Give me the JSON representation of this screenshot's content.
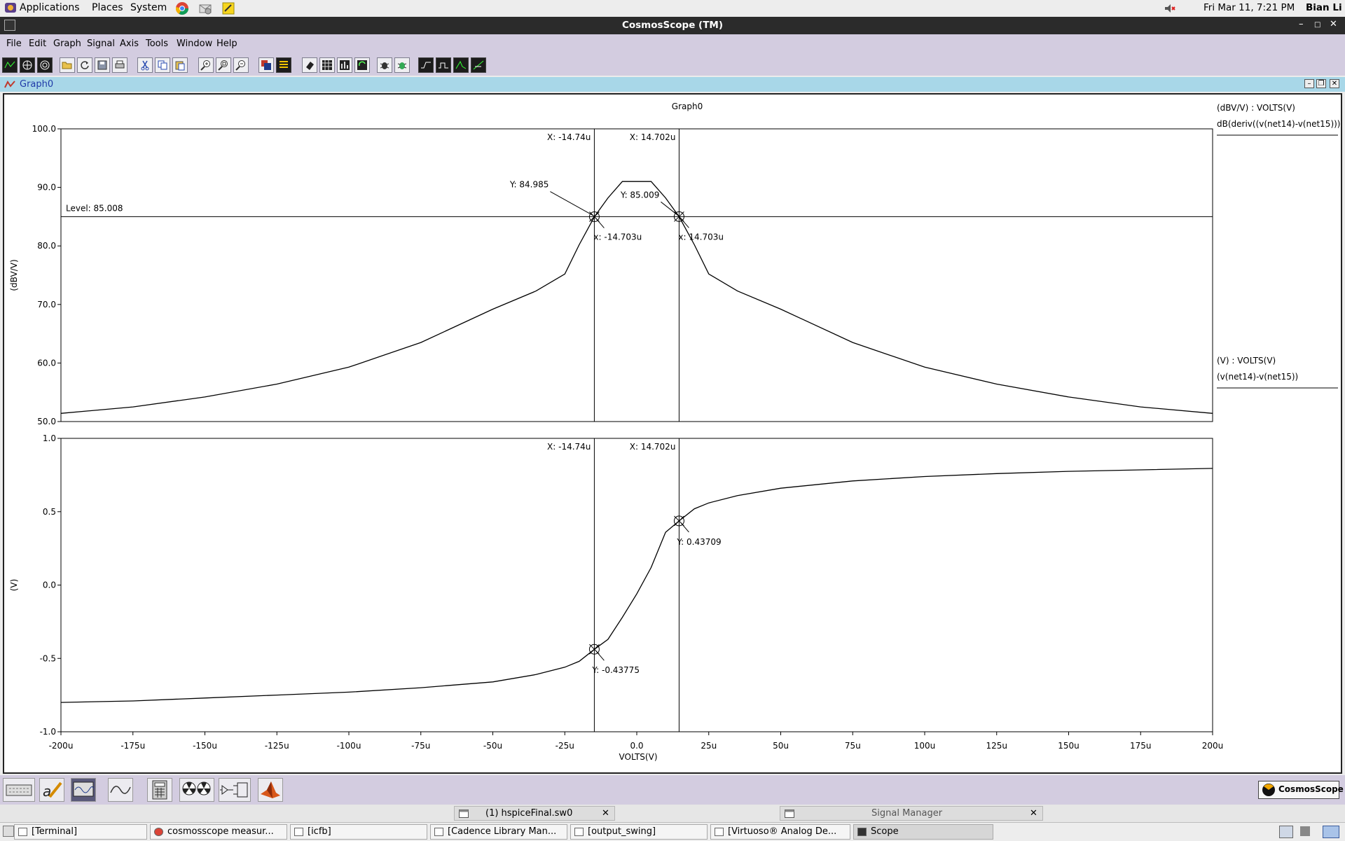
{
  "panel": {
    "menus": [
      "Applications",
      "Places",
      "System"
    ],
    "datetime": "Fri Mar 11,  7:21 PM",
    "user": "Bian Li"
  },
  "window": {
    "title": "CosmosScope (TM)"
  },
  "menubar": [
    "File",
    "Edit",
    "Graph",
    "Signal",
    "Axis",
    "Tools",
    "Window",
    "Help"
  ],
  "subwindow": {
    "title": "Graph0"
  },
  "graph_title": "Graph0",
  "bottom_logo": "CosmosScope",
  "doc_tabs": [
    {
      "label": "(1) hspiceFinal.sw0"
    },
    {
      "label": "Signal Manager"
    }
  ],
  "taskbar": [
    "[Terminal]",
    "cosmosscope measur...",
    "[icfb]",
    "[Cadence Library Man...",
    "[output_swing]",
    "[Virtuoso® Analog De...",
    "Scope"
  ],
  "colors": {
    "menubar": "#d3cce0",
    "subwindow_bar": "#a8d7e8",
    "plot_bg": "#ffffff",
    "trace": "#000000"
  },
  "chart_data": [
    {
      "type": "line",
      "title": "Graph0",
      "legend_header": "(dBV/V) : VOLTS(V)",
      "ylabel": "(dBV/V)",
      "ylim": [
        50,
        100
      ],
      "yticks": [
        "100.0",
        "90.0",
        "80.0",
        "70.0",
        "60.0",
        "50.0"
      ],
      "xlim": [
        -200,
        200
      ],
      "level_label": "Level: 85.008",
      "level": 85.008,
      "series": [
        {
          "name": "dB(deriv((v(net14)-v(net15))))",
          "x": [
            -200,
            -175,
            -150,
            -125,
            -100,
            -75,
            -50,
            -35,
            -25,
            -20,
            -14.7,
            -10,
            -5,
            0,
            5,
            10,
            14.7,
            20,
            25,
            35,
            50,
            75,
            100,
            125,
            150,
            175,
            200
          ],
          "y": [
            51.4,
            52.5,
            54.2,
            56.4,
            59.3,
            63.5,
            69.2,
            72.3,
            75.2,
            80.2,
            85.0,
            88.2,
            91.0,
            91.0,
            91.0,
            88.2,
            85.0,
            80.2,
            75.2,
            72.3,
            69.2,
            63.5,
            59.3,
            56.4,
            54.2,
            52.5,
            51.4
          ]
        }
      ],
      "cursors": [
        {
          "x_label": "X: -14.74u",
          "y_label": "Y: 84.985",
          "x_readout": "x: -14.703u",
          "x": -14.74,
          "y": 84.985
        },
        {
          "x_label": "X: 14.702u",
          "y_label": "Y: 85.009",
          "x_readout": "x: 14.703u",
          "x": 14.702,
          "y": 85.009
        }
      ]
    },
    {
      "type": "line",
      "legend_header": "(V) : VOLTS(V)",
      "ylabel": "(V)",
      "ylim": [
        -1,
        1
      ],
      "yticks": [
        "1.0",
        "0.5",
        "0.0",
        "-0.5",
        "-1.0"
      ],
      "xlim": [
        -200,
        200
      ],
      "xlabel": "VOLTS(V)",
      "xticks": [
        "-200u",
        "-175u",
        "-150u",
        "-125u",
        "-100u",
        "-75u",
        "-50u",
        "-25u",
        "0.0",
        "25u",
        "50u",
        "75u",
        "100u",
        "125u",
        "150u",
        "175u",
        "200u"
      ],
      "series": [
        {
          "name": "(v(net14)-v(net15))",
          "x": [
            -200,
            -175,
            -150,
            -125,
            -100,
            -75,
            -50,
            -35,
            -25,
            -20,
            -14.7,
            -10,
            -5,
            0,
            5,
            10,
            14.7,
            20,
            25,
            35,
            50,
            75,
            100,
            125,
            150,
            175,
            200
          ],
          "y": [
            -0.8,
            -0.79,
            -0.77,
            -0.75,
            -0.73,
            -0.7,
            -0.66,
            -0.61,
            -0.56,
            -0.52,
            -0.43775,
            -0.37,
            -0.22,
            -0.06,
            0.12,
            0.36,
            0.43709,
            0.52,
            0.56,
            0.61,
            0.66,
            0.71,
            0.74,
            0.76,
            0.775,
            0.785,
            0.795
          ]
        }
      ],
      "cursors": [
        {
          "x_label": "X: -14.74u",
          "y_label": "Y: -0.43775",
          "x": -14.74,
          "y": -0.43775
        },
        {
          "x_label": "X: 14.702u",
          "y_label": "Y: 0.43709",
          "x": 14.702,
          "y": 0.43709
        }
      ]
    }
  ]
}
